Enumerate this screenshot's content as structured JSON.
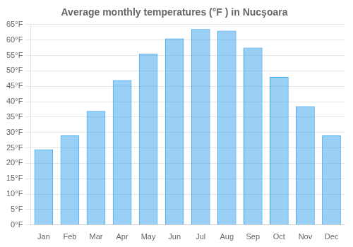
{
  "chart_data": {
    "type": "bar",
    "title": "Average monthly temperatures (°F ) in Nucşoara",
    "categories": [
      "Jan",
      "Feb",
      "Mar",
      "Apr",
      "May",
      "Jun",
      "Jul",
      "Aug",
      "Sep",
      "Oct",
      "Nov",
      "Dec"
    ],
    "values": [
      24.5,
      29,
      37,
      47,
      55.5,
      60.5,
      63.5,
      63,
      57.5,
      48,
      38.5,
      29
    ],
    "ylim": [
      0,
      65
    ],
    "yticks": [
      {
        "value": 0,
        "label": "0°F"
      },
      {
        "value": 5,
        "label": "5°F"
      },
      {
        "value": 10,
        "label": "10°F"
      },
      {
        "value": 15,
        "label": "15°F"
      },
      {
        "value": 20,
        "label": "20°F"
      },
      {
        "value": 25,
        "label": "25°F"
      },
      {
        "value": 30,
        "label": "30°F"
      },
      {
        "value": 35,
        "label": "35°F"
      },
      {
        "value": 40,
        "label": "40°F"
      },
      {
        "value": 45,
        "label": "45°F"
      },
      {
        "value": 50,
        "label": "50°F"
      },
      {
        "value": 55,
        "label": "55°F"
      },
      {
        "value": 60,
        "label": "60°F"
      },
      {
        "value": 65,
        "label": "65°F"
      }
    ],
    "grid": true
  }
}
